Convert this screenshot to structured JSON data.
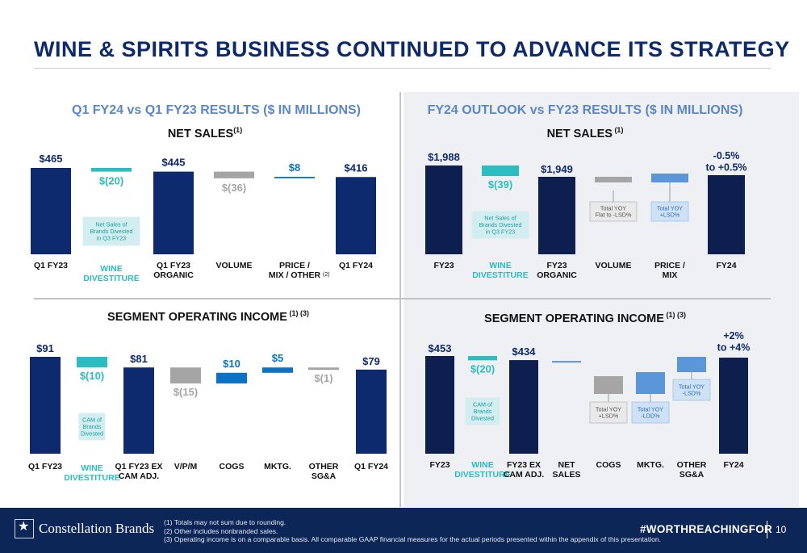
{
  "title": "WINE & SPIRITS BUSINESS CONTINUED TO ADVANCE ITS STRATEGY",
  "colors": {
    "dark_navy": "#0c1f4f",
    "navy": "#0e2a6e",
    "teal": "#2bbdbf",
    "gray": "#a5a5a5",
    "blue": "#0b73c6",
    "light_blue": "#5b97d8",
    "panel_bg": "#eef0f3",
    "teal_box": "#d3eef0",
    "blue_box": "#cfe1f4",
    "gray_box": "#e9e9e9"
  },
  "left_section_title": "Q1 FY24 vs Q1 FY23 RESULTS ($ IN MILLIONS)",
  "right_section_title": "FY24 OUTLOOK vs FY23 RESULTS ($ IN MILLIONS)",
  "subtitles": {
    "net_sales": "NET SALES",
    "net_sales_left_sup": "(1)",
    "net_sales_right_sup": " (1)",
    "op_income": "SEGMENT OPERATING INCOME",
    "op_income_sup": " (1) (3)"
  },
  "chart_data": [
    {
      "type": "bar",
      "title": "NET SALES",
      "categories": [
        "Q1 FY23",
        "WINE DIVESTITURE",
        "Q1 FY23 ORGANIC",
        "VOLUME",
        "PRICE / MIX / OTHER (2)",
        "Q1 FY24"
      ],
      "values": [
        465,
        -20,
        445,
        -36,
        8,
        416
      ],
      "data_labels": [
        "$465",
        "$(20)",
        "$445",
        "$(36)",
        "$8",
        "$416"
      ],
      "annotations": [
        {
          "category": "WINE DIVESTITURE",
          "text": "Net Sales of Brands Divested in Q3 FY23"
        }
      ]
    },
    {
      "type": "bar",
      "title": "NET SALES",
      "categories": [
        "FY23",
        "WINE DIVESTITURE",
        "FY23 ORGANIC",
        "VOLUME",
        "PRICE / MIX",
        "FY24"
      ],
      "values": [
        1988,
        -39,
        1949,
        null,
        null,
        null
      ],
      "data_labels": [
        "$1,988",
        "$(39)",
        "$1,949",
        "",
        "",
        "-0.5% to +0.5%"
      ],
      "annotations": [
        {
          "category": "WINE DIVESTITURE",
          "text": "Net Sales of Brands Divested in Q3 FY23"
        },
        {
          "category": "VOLUME",
          "text": "Total YOY Flat to -LSD%"
        },
        {
          "category": "PRICE / MIX",
          "text": "Total YOY +LSD%"
        }
      ]
    },
    {
      "type": "bar",
      "title": "SEGMENT OPERATING INCOME",
      "categories": [
        "Q1 FY23",
        "WINE DIVESTITURE",
        "Q1 FY23 EX CAM ADJ.",
        "V/P/M",
        "COGS",
        "MKTG.",
        "OTHER SG&A",
        "Q1 FY24"
      ],
      "values": [
        91,
        -10,
        81,
        -15,
        10,
        5,
        -1,
        79
      ],
      "data_labels": [
        "$91",
        "$(10)",
        "$81",
        "$(15)",
        "$10",
        "$5",
        "$(1)",
        "$79"
      ],
      "annotations": [
        {
          "category": "WINE DIVESTITURE",
          "text": "CAM of Brands Divested"
        }
      ]
    },
    {
      "type": "bar",
      "title": "SEGMENT OPERATING INCOME",
      "categories": [
        "FY23",
        "WINE DIVESTITURE",
        "FY23 EX CAM ADJ.",
        "NET SALES",
        "COGS",
        "MKTG.",
        "OTHER SG&A",
        "FY24"
      ],
      "values": [
        453,
        -20,
        434,
        null,
        null,
        null,
        null,
        null
      ],
      "data_labels": [
        "$453",
        "$(20)",
        "$434",
        "",
        "",
        "",
        "",
        "+2% to +4%"
      ],
      "annotations": [
        {
          "category": "WINE DIVESTITURE",
          "text": "CAM of Brands Divested"
        },
        {
          "category": "COGS",
          "text": "Total YOY +LSD%"
        },
        {
          "category": "MKTG.",
          "text": "Total YOY -LDD%"
        },
        {
          "category": "OTHER SG&A",
          "text": "Total YOY -LSD%"
        }
      ]
    }
  ],
  "footer": {
    "logo": "Constellation Brands",
    "notes": [
      "(1)  Totals may not sum due to rounding.",
      "(2)  Other includes nonbranded sales.",
      "(3)  Operating income is on a comparable basis. All comparable GAAP financial measures for the actual periods presented within the appendix of this presentation."
    ],
    "hashtag": "#WORTHREACHINGFOR",
    "page": "10"
  }
}
